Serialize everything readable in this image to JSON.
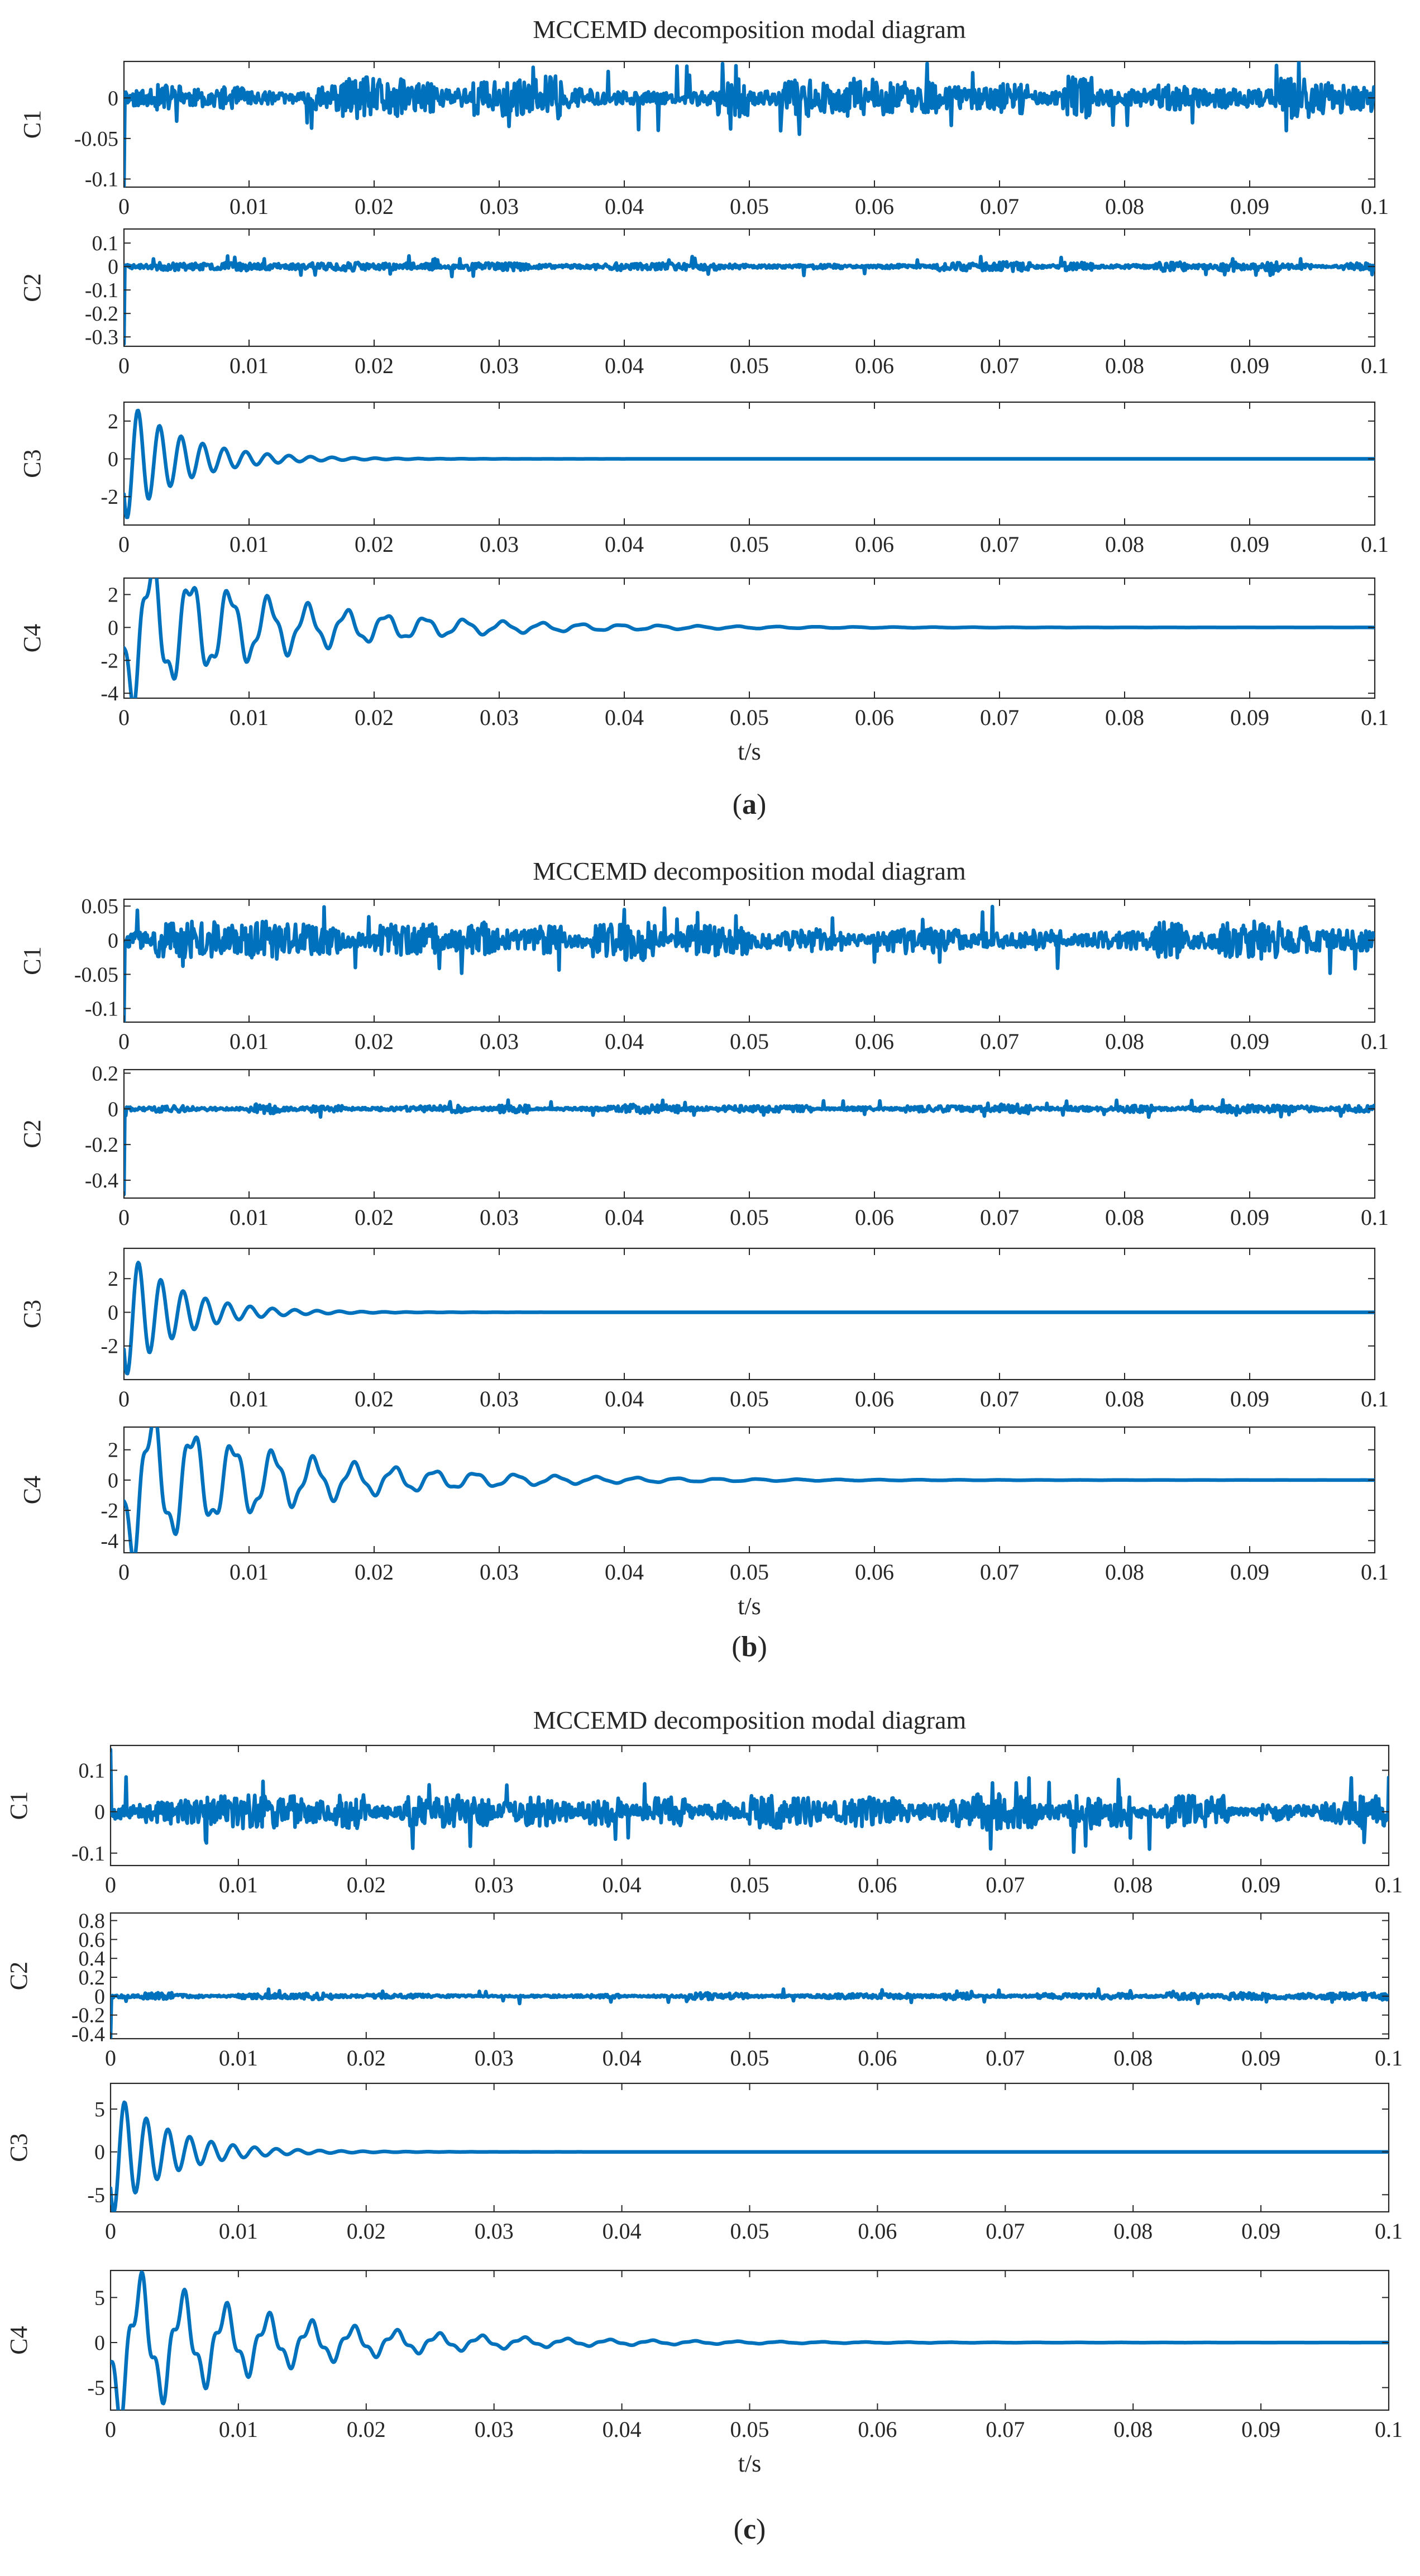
{
  "chart_data": [
    {
      "type": "line",
      "panel_label": "(a)",
      "panel_letter": "a",
      "title": "MCCEMD decomposition modal diagram",
      "xlabel": "t/s",
      "xlim": [
        0,
        0.1
      ],
      "xticks": [
        "0",
        "0.01",
        "0.02",
        "0.03",
        "0.04",
        "0.05",
        "0.06",
        "0.07",
        "0.08",
        "0.09",
        "0.1"
      ],
      "series": [
        {
          "name": "C1",
          "ylabel": "C1",
          "ylim": [
            -0.11,
            0.045
          ],
          "yticks": [
            {
              "v": 0,
              "label": "0"
            },
            {
              "v": -0.05,
              "label": "-0.05"
            },
            {
              "v": -0.1,
              "label": "-0.1"
            }
          ],
          "signal": {
            "kind": "noise",
            "amp": 0.02,
            "spike": 0.045,
            "start": -0.11,
            "seed": 11
          }
        },
        {
          "name": "C2",
          "ylabel": "C2",
          "ylim": [
            -0.34,
            0.16
          ],
          "yticks": [
            {
              "v": 0.1,
              "label": "0.1"
            },
            {
              "v": 0,
              "label": "0"
            },
            {
              "v": -0.1,
              "label": "-0.1"
            },
            {
              "v": -0.2,
              "label": "-0.2"
            },
            {
              "v": -0.3,
              "label": "-0.3"
            }
          ],
          "signal": {
            "kind": "noise",
            "amp": 0.018,
            "spike": 0.045,
            "start": -0.33,
            "seed": 23
          }
        },
        {
          "name": "C3",
          "ylabel": "C3",
          "ylim": [
            -3.5,
            3
          ],
          "yticks": [
            {
              "v": 2,
              "label": "2"
            },
            {
              "v": 0,
              "label": "0"
            },
            {
              "v": -2,
              "label": "-2"
            }
          ],
          "signal": {
            "kind": "decay",
            "amp": 3.3,
            "freq": 580,
            "tau": 0.0045
          }
        },
        {
          "name": "C4",
          "ylabel": "C4",
          "ylim": [
            -4.3,
            3
          ],
          "yticks": [
            {
              "v": 2,
              "label": "2"
            },
            {
              "v": 0,
              "label": "0"
            },
            {
              "v": -2,
              "label": "-2"
            },
            {
              "v": -4,
              "label": "-4"
            }
          ],
          "signal": {
            "kind": "decay2",
            "amp": 4.2,
            "freq": 320,
            "tau": 0.012,
            "amp2": 1.2,
            "freq2": 900,
            "tau2": 0.01
          }
        }
      ]
    },
    {
      "type": "line",
      "panel_label": "(b)",
      "panel_letter": "b",
      "title": "MCCEMD decomposition modal diagram",
      "xlabel": "t/s",
      "xlim": [
        0,
        0.1
      ],
      "xticks": [
        "0",
        "0.01",
        "0.02",
        "0.03",
        "0.04",
        "0.05",
        "0.06",
        "0.07",
        "0.08",
        "0.09",
        "0.1"
      ],
      "series": [
        {
          "name": "C1",
          "ylabel": "C1",
          "ylim": [
            -0.12,
            0.06
          ],
          "yticks": [
            {
              "v": 0.05,
              "label": "0.05"
            },
            {
              "v": 0,
              "label": "0"
            },
            {
              "v": -0.05,
              "label": "-0.05"
            },
            {
              "v": -0.1,
              "label": "-0.1"
            }
          ],
          "signal": {
            "kind": "noise",
            "amp": 0.022,
            "spike": 0.05,
            "start": -0.12,
            "seed": 37
          }
        },
        {
          "name": "C2",
          "ylabel": "C2",
          "ylim": [
            -0.5,
            0.22
          ],
          "yticks": [
            {
              "v": 0.2,
              "label": "0.2"
            },
            {
              "v": 0,
              "label": "0"
            },
            {
              "v": -0.2,
              "label": "-0.2"
            },
            {
              "v": -0.4,
              "label": "-0.4"
            }
          ],
          "signal": {
            "kind": "noise",
            "amp": 0.02,
            "spike": 0.05,
            "start": -0.48,
            "seed": 41
          }
        },
        {
          "name": "C3",
          "ylabel": "C3",
          "ylim": [
            -4,
            3.8
          ],
          "yticks": [
            {
              "v": 2,
              "label": "2"
            },
            {
              "v": 0,
              "label": "0"
            },
            {
              "v": -2,
              "label": "-2"
            }
          ],
          "signal": {
            "kind": "decay",
            "amp": 3.9,
            "freq": 560,
            "tau": 0.0042
          }
        },
        {
          "name": "C4",
          "ylabel": "C4",
          "ylim": [
            -4.8,
            3.5
          ],
          "yticks": [
            {
              "v": 2,
              "label": "2"
            },
            {
              "v": 0,
              "label": "0"
            },
            {
              "v": -2,
              "label": "-2"
            },
            {
              "v": -4,
              "label": "-4"
            }
          ],
          "signal": {
            "kind": "decay2",
            "amp": 4.7,
            "freq": 310,
            "tau": 0.012,
            "amp2": 1.3,
            "freq2": 880,
            "tau2": 0.01
          }
        }
      ]
    },
    {
      "type": "line",
      "panel_label": "(c)",
      "panel_letter": "c",
      "title": "MCCEMD decomposition modal diagram",
      "xlabel": "t/s",
      "xlim": [
        0,
        0.1
      ],
      "xticks": [
        "0",
        "0.01",
        "0.02",
        "0.03",
        "0.04",
        "0.05",
        "0.06",
        "0.07",
        "0.08",
        "0.09",
        "0.1"
      ],
      "series": [
        {
          "name": "C1",
          "ylabel": "C1",
          "ylim": [
            -0.13,
            0.16
          ],
          "yticks": [
            {
              "v": 0.1,
              "label": "0.1"
            },
            {
              "v": 0,
              "label": "0"
            },
            {
              "v": -0.1,
              "label": "-0.1"
            }
          ],
          "signal": {
            "kind": "noise",
            "amp": 0.035,
            "spike": 0.1,
            "start": 0.15,
            "seed": 53
          }
        },
        {
          "name": "C2",
          "ylabel": "C2",
          "ylim": [
            -0.45,
            0.88
          ],
          "yticks": [
            {
              "v": 0.8,
              "label": "0.8"
            },
            {
              "v": 0.6,
              "label": "0.6"
            },
            {
              "v": 0.4,
              "label": "0.4"
            },
            {
              "v": 0.2,
              "label": "0.2"
            },
            {
              "v": 0,
              "label": "0"
            },
            {
              "v": -0.2,
              "label": "-0.2"
            },
            {
              "v": -0.4,
              "label": "-0.4"
            }
          ],
          "signal": {
            "kind": "noise",
            "amp": 0.03,
            "spike": 0.08,
            "start": -0.44,
            "seed": 67
          }
        },
        {
          "name": "C3",
          "ylabel": "C3",
          "ylim": [
            -7,
            8
          ],
          "yticks": [
            {
              "v": 5,
              "label": "5"
            },
            {
              "v": 0,
              "label": "0"
            },
            {
              "v": -5,
              "label": "-5"
            }
          ],
          "signal": {
            "kind": "decay",
            "amp": 7.5,
            "freq": 590,
            "tau": 0.0043
          }
        },
        {
          "name": "C4",
          "ylabel": "C4",
          "ylim": [
            -7.5,
            8
          ],
          "yticks": [
            {
              "v": 5,
              "label": "5"
            },
            {
              "v": 0,
              "label": "0"
            },
            {
              "v": -5,
              "label": "-5"
            }
          ],
          "signal": {
            "kind": "decay2",
            "amp": 7.4,
            "freq": 300,
            "tau": 0.012,
            "amp2": 2.5,
            "freq2": 900,
            "tau2": 0.011
          }
        }
      ]
    }
  ]
}
